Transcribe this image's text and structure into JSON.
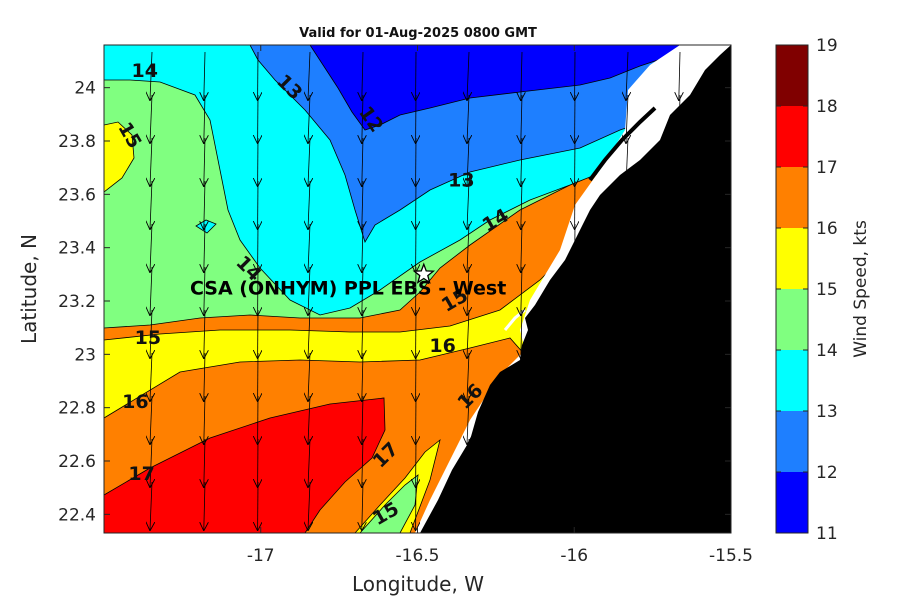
{
  "title": "Valid for 01-Aug-2025 0800 GMT",
  "site_label": "CSA (ONHYM) PPL EBS - West",
  "chart_data": {
    "type": "heatmap",
    "xlabel": "Longitude, W",
    "ylabel": "Latitude, N",
    "xlim": [
      -17.5,
      -15.5
    ],
    "ylim": [
      22.33,
      24.16
    ],
    "x_ticks": [
      "-17",
      "-16.5",
      "-16",
      "-15.5"
    ],
    "y_ticks": [
      "22.4",
      "22.6",
      "22.8",
      "23",
      "23.2",
      "23.4",
      "23.6",
      "23.8",
      "24"
    ],
    "colorbar": {
      "label": "Wind Speed, kts",
      "levels": [
        11,
        12,
        13,
        14,
        15,
        16,
        17,
        18,
        19
      ],
      "tick_labels": [
        "11",
        "12",
        "13",
        "14",
        "15",
        "16",
        "17",
        "18",
        "19"
      ],
      "colors": [
        "#0000ff",
        "#1e7fff",
        "#00ffff",
        "#80ff80",
        "#ffff00",
        "#ff8000",
        "#ff0000",
        "#800000"
      ]
    },
    "contour_labels": [
      {
        "text": "14",
        "lon": -17.37,
        "lat": 24.06,
        "angle": 0
      },
      {
        "text": "15",
        "lon": -17.42,
        "lat": 23.82,
        "angle": 60
      },
      {
        "text": "13",
        "lon": -16.91,
        "lat": 24.0,
        "angle": 45
      },
      {
        "text": "12",
        "lon": -16.65,
        "lat": 23.88,
        "angle": 55
      },
      {
        "text": "13",
        "lon": -16.36,
        "lat": 23.65,
        "angle": 0
      },
      {
        "text": "14",
        "lon": -16.25,
        "lat": 23.5,
        "angle": -30
      },
      {
        "text": "14",
        "lon": -17.04,
        "lat": 23.32,
        "angle": 45
      },
      {
        "text": "15",
        "lon": -16.38,
        "lat": 23.2,
        "angle": -30
      },
      {
        "text": "15",
        "lon": -17.36,
        "lat": 23.06,
        "angle": 0
      },
      {
        "text": "16",
        "lon": -16.42,
        "lat": 23.03,
        "angle": 0
      },
      {
        "text": "16",
        "lon": -17.4,
        "lat": 22.82,
        "angle": 0
      },
      {
        "text": "16",
        "lon": -16.33,
        "lat": 22.84,
        "angle": -45
      },
      {
        "text": "17",
        "lon": -16.6,
        "lat": 22.62,
        "angle": -45
      },
      {
        "text": "17",
        "lon": -17.38,
        "lat": 22.55,
        "angle": 0
      },
      {
        "text": "15",
        "lon": -16.6,
        "lat": 22.4,
        "angle": -30
      }
    ],
    "site": {
      "lon": -16.48,
      "lat": 23.3
    }
  }
}
